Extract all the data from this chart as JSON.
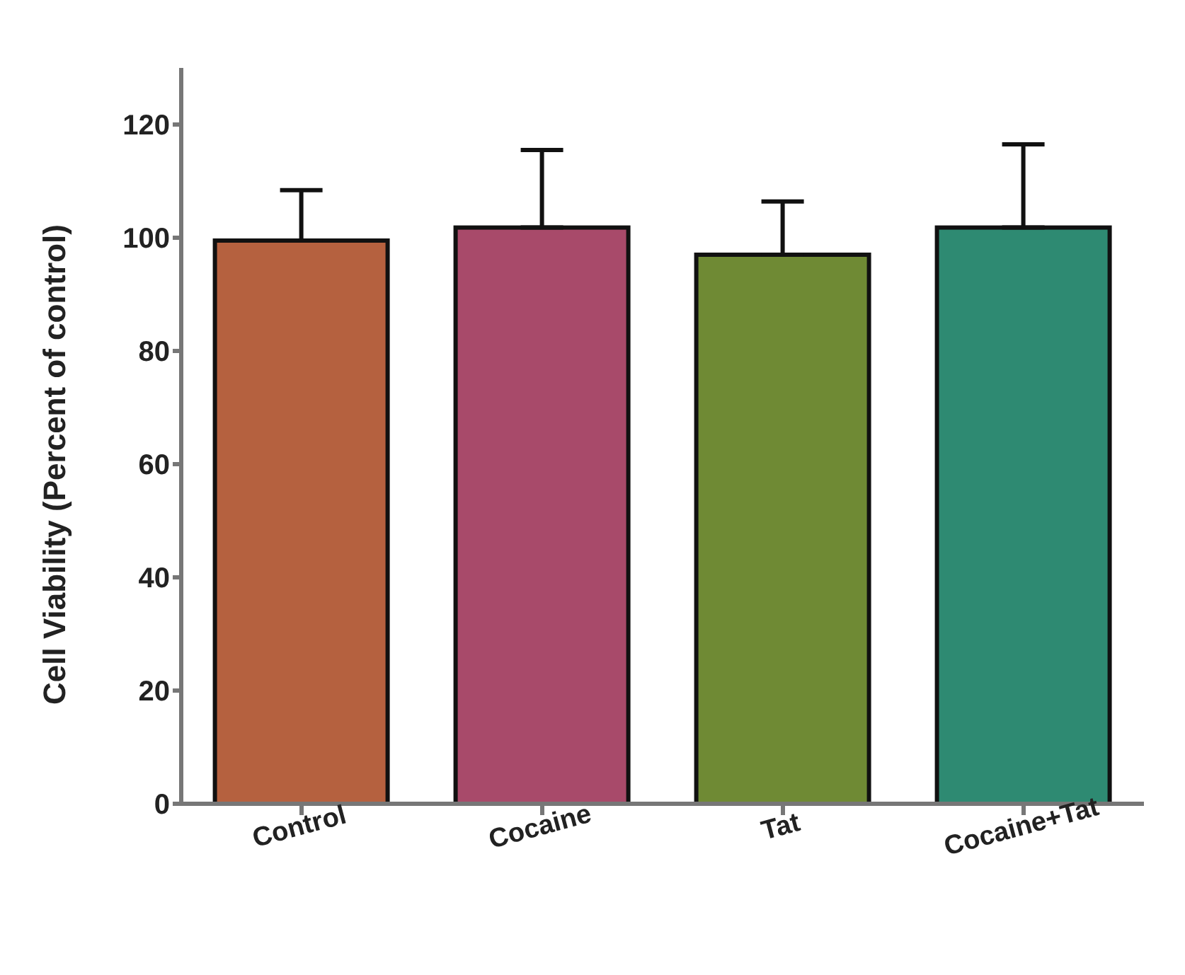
{
  "chart_data": {
    "type": "bar",
    "ylabel": "Cell Viability (Percent of control)",
    "categories": [
      "Control",
      "Cocaine",
      "Tat",
      "Cocaine+Tat"
    ],
    "values": [
      99.5,
      101.8,
      97,
      101.8
    ],
    "colors": [
      "#b5613f",
      "#a84a6a",
      "#6f8a34",
      "#2e8a72"
    ],
    "errors": [
      [
        99.5,
        108.4
      ],
      [
        101.8,
        115.5
      ],
      [
        97,
        106.4
      ],
      [
        101.8,
        116.5
      ]
    ],
    "ylim": [
      0,
      130
    ],
    "yticks": [
      0,
      20,
      40,
      60,
      80,
      100,
      120
    ],
    "grid": false,
    "legend": false
  }
}
